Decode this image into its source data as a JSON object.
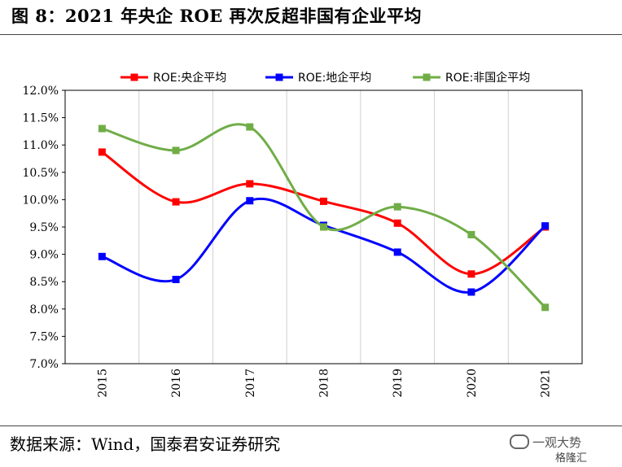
{
  "figure": {
    "title": "图 8：2021 年央企 ROE 再次反超非国有企业平均",
    "source": "数据来源：Wind，国泰君安证券研究",
    "watermark_line1": "一观大势",
    "watermark_line2": "格隆汇"
  },
  "chart_data": {
    "type": "line",
    "x": [
      "2015",
      "2016",
      "2017",
      "2018",
      "2019",
      "2020",
      "2021"
    ],
    "y_ticks": [
      "12.0%",
      "11.5%",
      "11.0%",
      "10.5%",
      "10.0%",
      "9.5%",
      "9.0%",
      "8.5%",
      "8.0%",
      "7.5%",
      "7.0%"
    ],
    "ylim": [
      7.0,
      12.0
    ],
    "y_step": 0.5,
    "grid": "vertical",
    "legend_position": "top",
    "smooth": true,
    "series": [
      {
        "name": "ROE:央企平均",
        "color": "#ff0000",
        "values": [
          10.87,
          9.96,
          10.29,
          9.97,
          9.57,
          8.64,
          9.5
        ]
      },
      {
        "name": "ROE:地企平均",
        "color": "#0000ff",
        "values": [
          8.96,
          8.54,
          9.98,
          9.53,
          9.04,
          8.31,
          9.52
        ]
      },
      {
        "name": "ROE:非国企平均",
        "color": "#70ad47",
        "values": [
          11.3,
          10.9,
          11.33,
          9.5,
          9.87,
          9.36,
          8.03
        ]
      }
    ]
  }
}
